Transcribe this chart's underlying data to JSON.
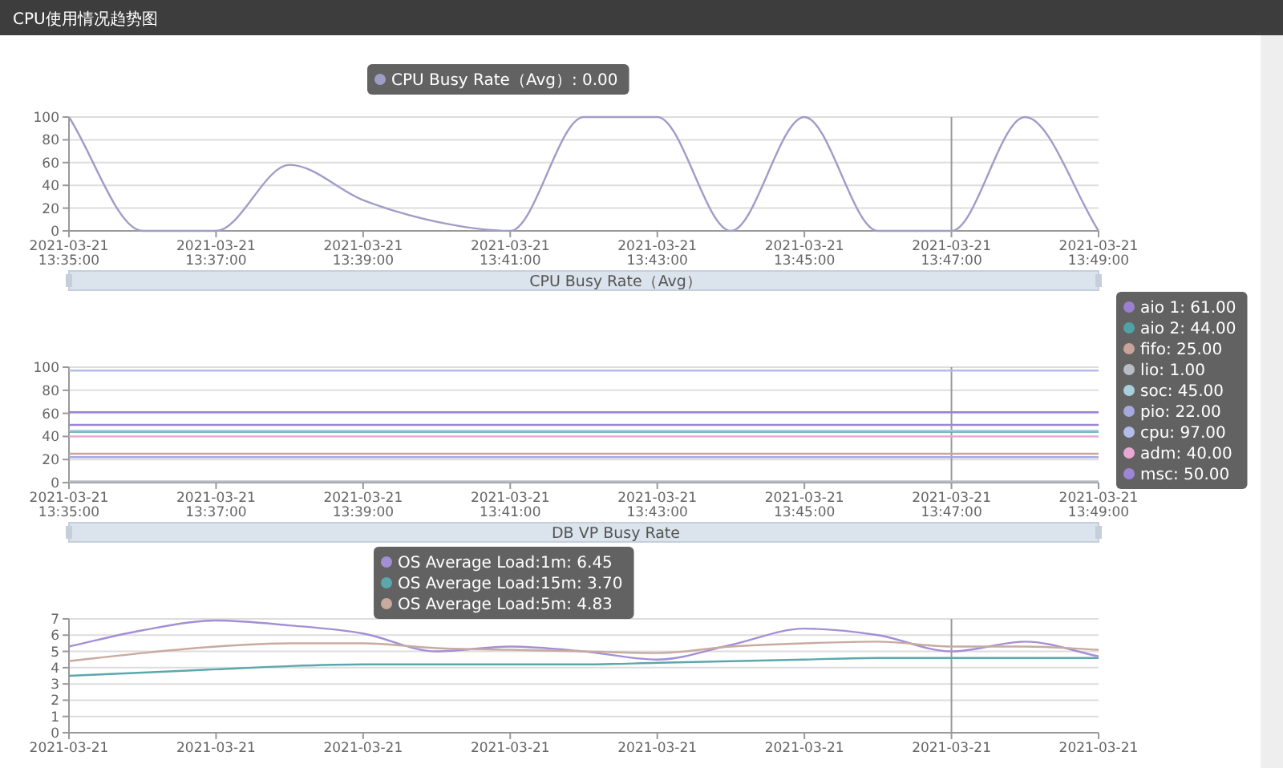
{
  "chart_data": [
    {
      "type": "line",
      "title": "CPU使用情况趋势图",
      "x": [
        "2021-03-21T13:35",
        "2021-03-21T13:36",
        "2021-03-21T13:37",
        "2021-03-21T13:38",
        "2021-03-21T13:39",
        "2021-03-21T13:40",
        "2021-03-21T13:41",
        "2021-03-21T13:42",
        "2021-03-21T13:43",
        "2021-03-21T13:44",
        "2021-03-21T13:45",
        "2021-03-21T13:46",
        "2021-03-21T13:47",
        "2021-03-21T13:48",
        "2021-03-21T13:49"
      ],
      "series": [
        {
          "color": "#a09cc8",
          "values": [
            100,
            0,
            0,
            58,
            27,
            8,
            0,
            100,
            100,
            0,
            100,
            0,
            0,
            100,
            0
          ]
        }
      ],
      "xlim": [
        "2021-03-21T13:35",
        "2021-03-21T13:49"
      ],
      "xticks": [
        {
          "value": "2021-03-21T13:35",
          "label": "2021-03-21 13:35:00"
        },
        {
          "value": "2021-03-21T13:37",
          "label": "2021-03-21 13:37:00"
        },
        {
          "value": "2021-03-21T13:39",
          "label": "2021-03-21 13:39:00"
        },
        {
          "value": "2021-03-21T13:41",
          "label": "2021-03-21 13:41:00"
        },
        {
          "value": "2021-03-21T13:43",
          "label": "2021-03-21 13:43:00"
        },
        {
          "value": "2021-03-21T13:45",
          "label": "2021-03-21 13:45:00"
        },
        {
          "value": "2021-03-21T13:47",
          "label": "2021-03-21 13:47:00"
        },
        {
          "value": "2021-03-21T13:49",
          "label": "2021-03-21 13:49:00"
        }
      ],
      "ylim": [
        0,
        100
      ],
      "yticks": [
        0,
        20,
        40,
        60,
        80,
        100
      ],
      "grid": "y",
      "ref_lines": [
        {
          "axis": "x",
          "value": "2021-03-21T13:47",
          "color": "#999999"
        }
      ],
      "annotations": [
        "CPU Busy Rate（Avg）: 0.00",
        "CPU Busy Rate（Avg）"
      ]
    },
    {
      "type": "line",
      "x": [
        "2021-03-21T13:35",
        "2021-03-21T13:36",
        "2021-03-21T13:37",
        "2021-03-21T13:38",
        "2021-03-21T13:39",
        "2021-03-21T13:40",
        "2021-03-21T13:41",
        "2021-03-21T13:42",
        "2021-03-21T13:43",
        "2021-03-21T13:44",
        "2021-03-21T13:45",
        "2021-03-21T13:46",
        "2021-03-21T13:47",
        "2021-03-21T13:48",
        "2021-03-21T13:49"
      ],
      "series": [
        {
          "color": "#9b7fd0",
          "values": [
            61,
            61,
            61,
            61,
            61,
            61,
            61,
            61,
            61,
            61,
            61,
            61,
            61,
            61,
            61
          ]
        },
        {
          "color": "#4fa3a8",
          "values": [
            44,
            44,
            44,
            44,
            44,
            44,
            44,
            44,
            44,
            44,
            44,
            44,
            44,
            44,
            44
          ]
        },
        {
          "color": "#c9a49a",
          "values": [
            25,
            25,
            25,
            25,
            25,
            25,
            25,
            25,
            25,
            25,
            25,
            25,
            25,
            25,
            25
          ]
        },
        {
          "color": "#b8bec4",
          "values": [
            1,
            1,
            1,
            1,
            1,
            1,
            1,
            1,
            1,
            1,
            1,
            1,
            1,
            1,
            1
          ]
        },
        {
          "color": "#a8d0dc",
          "values": [
            45,
            45,
            45,
            45,
            45,
            45,
            45,
            45,
            45,
            45,
            45,
            45,
            45,
            45,
            45
          ]
        },
        {
          "color": "#a6a8e0",
          "values": [
            22,
            22,
            22,
            22,
            22,
            22,
            22,
            22,
            22,
            22,
            22,
            22,
            22,
            22,
            22
          ]
        },
        {
          "color": "#b4bce8",
          "values": [
            97,
            97,
            97,
            97,
            97,
            97,
            97,
            97,
            97,
            97,
            97,
            97,
            97,
            97,
            97
          ]
        },
        {
          "color": "#e7a8d4",
          "values": [
            40,
            40,
            40,
            40,
            40,
            40,
            40,
            40,
            40,
            40,
            40,
            40,
            40,
            40,
            40
          ]
        },
        {
          "color": "#9d86d8",
          "values": [
            50,
            50,
            50,
            50,
            50,
            50,
            50,
            50,
            50,
            50,
            50,
            50,
            50,
            50,
            50
          ]
        }
      ],
      "xlim": [
        "2021-03-21T13:35",
        "2021-03-21T13:49"
      ],
      "xticks": [
        {
          "value": "2021-03-21T13:35",
          "label": "2021-03-21 13:35:00"
        },
        {
          "value": "2021-03-21T13:37",
          "label": "2021-03-21 13:37:00"
        },
        {
          "value": "2021-03-21T13:39",
          "label": "2021-03-21 13:39:00"
        },
        {
          "value": "2021-03-21T13:41",
          "label": "2021-03-21 13:41:00"
        },
        {
          "value": "2021-03-21T13:43",
          "label": "2021-03-21 13:43:00"
        },
        {
          "value": "2021-03-21T13:45",
          "label": "2021-03-21 13:45:00"
        },
        {
          "value": "2021-03-21T13:47",
          "label": "2021-03-21 13:47:00"
        },
        {
          "value": "2021-03-21T13:49",
          "label": "2021-03-21 13:49:00"
        }
      ],
      "ylim": [
        0,
        100
      ],
      "yticks": [
        0,
        20,
        40,
        60,
        80,
        100
      ],
      "grid": "y",
      "ref_lines": [
        {
          "axis": "x",
          "value": "2021-03-21T13:47",
          "color": "#999999"
        }
      ],
      "annotations": [
        "aio 1: 61.00",
        "aio 2: 44.00",
        "fifo: 25.00",
        "lio: 1.00",
        "soc: 45.00",
        "pio: 22.00",
        "cpu: 97.00",
        "adm: 40.00",
        "msc: 50.00",
        "DB VP Busy Rate"
      ]
    },
    {
      "type": "line",
      "x": [
        "2021-03-21T13:35",
        "2021-03-21T13:36",
        "2021-03-21T13:37",
        "2021-03-21T13:38",
        "2021-03-21T13:39",
        "2021-03-21T13:40",
        "2021-03-21T13:41",
        "2021-03-21T13:42",
        "2021-03-21T13:43",
        "2021-03-21T13:44",
        "2021-03-21T13:45",
        "2021-03-21T13:46",
        "2021-03-21T13:47",
        "2021-03-21T13:48",
        "2021-03-21T13:49"
      ],
      "series": [
        {
          "color": "#a48fd6",
          "values": [
            5.3,
            6.3,
            6.9,
            6.6,
            6.1,
            5.0,
            5.3,
            5.0,
            4.5,
            5.4,
            6.4,
            6.0,
            5.0,
            5.6,
            4.7
          ]
        },
        {
          "color": "#5aa8ab",
          "values": [
            3.5,
            3.7,
            3.9,
            4.1,
            4.2,
            4.2,
            4.2,
            4.2,
            4.3,
            4.4,
            4.5,
            4.6,
            4.6,
            4.6,
            4.6
          ]
        },
        {
          "color": "#c9aa9e",
          "values": [
            4.4,
            4.9,
            5.3,
            5.5,
            5.5,
            5.2,
            5.1,
            5.0,
            4.9,
            5.3,
            5.5,
            5.6,
            5.3,
            5.3,
            5.1
          ]
        }
      ],
      "xlim": [
        "2021-03-21T13:35",
        "2021-03-21T13:49"
      ],
      "xticks": [
        {
          "value": "2021-03-21T13:35",
          "label": "2021-03-21"
        },
        {
          "value": "2021-03-21T13:37",
          "label": "2021-03-21"
        },
        {
          "value": "2021-03-21T13:39",
          "label": "2021-03-21"
        },
        {
          "value": "2021-03-21T13:41",
          "label": "2021-03-21"
        },
        {
          "value": "2021-03-21T13:43",
          "label": "2021-03-21"
        },
        {
          "value": "2021-03-21T13:45",
          "label": "2021-03-21"
        },
        {
          "value": "2021-03-21T13:47",
          "label": "2021-03-21"
        },
        {
          "value": "2021-03-21T13:49",
          "label": "2021-03-21"
        }
      ],
      "ylim": [
        0,
        7
      ],
      "yticks": [
        0,
        1,
        2,
        3,
        4,
        5,
        6,
        7
      ],
      "grid": "y",
      "ref_lines": [
        {
          "axis": "x",
          "value": "2021-03-21T13:47",
          "color": "#999999"
        }
      ],
      "annotations": [
        "OS Average Load:1m: 6.45",
        "OS Average Load:15m: 3.70",
        "OS Average Load:5m: 4.83"
      ]
    }
  ]
}
